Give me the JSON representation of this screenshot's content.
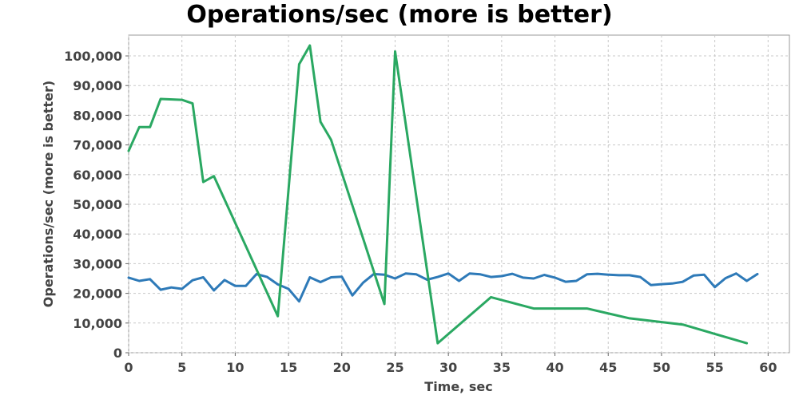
{
  "chart_data": {
    "type": "line",
    "title": "Operations/sec (more is better)",
    "xlabel": "Time, sec",
    "ylabel": "Operations/sec (more is better)",
    "xlim": [
      0,
      62
    ],
    "ylim": [
      0,
      107000
    ],
    "xticks": [
      0,
      5,
      10,
      15,
      20,
      25,
      30,
      35,
      40,
      45,
      50,
      55,
      60
    ],
    "yticks": [
      0,
      10000,
      20000,
      30000,
      40000,
      50000,
      60000,
      70000,
      80000,
      90000,
      100000
    ],
    "ytick_labels": [
      "0",
      "10,000",
      "20,000",
      "30,000",
      "40,000",
      "50,000",
      "60,000",
      "70,000",
      "80,000",
      "90,000",
      "100,000"
    ],
    "grid": true,
    "series": [
      {
        "color": "#2e7ab8",
        "x": [
          0,
          1,
          2,
          3,
          4,
          5,
          6,
          7,
          8,
          9,
          10,
          11,
          12,
          13,
          14,
          15,
          16,
          17,
          18,
          19,
          20,
          21,
          22,
          23,
          24,
          25,
          26,
          27,
          28,
          29,
          30,
          31,
          32,
          33,
          34,
          35,
          36,
          37,
          38,
          39,
          40,
          41,
          42,
          43,
          44,
          45,
          46,
          47,
          48,
          49,
          50,
          51,
          52,
          53,
          54,
          55,
          56,
          57,
          58,
          59
        ],
        "y": [
          25300,
          24200,
          24800,
          21200,
          22000,
          21500,
          24400,
          25400,
          21000,
          24500,
          22500,
          22500,
          26500,
          25500,
          23000,
          21500,
          17300,
          25400,
          23800,
          25400,
          25600,
          19300,
          23600,
          26500,
          26300,
          25000,
          26700,
          26400,
          24600,
          25500,
          26700,
          24200,
          26700,
          26400,
          25500,
          25800,
          26600,
          25300,
          25000,
          26200,
          25300,
          23900,
          24200,
          26400,
          26600,
          26300,
          26100,
          26100,
          25500,
          22800,
          23100,
          23300,
          23900,
          26000,
          26300,
          22100,
          25100,
          26700,
          24200,
          26500
        ]
      },
      {
        "color": "#2aa862",
        "x": [
          0,
          1,
          2,
          3,
          5,
          6,
          7,
          8,
          14,
          16,
          17,
          18,
          19,
          24,
          25,
          29,
          34,
          38,
          43,
          47,
          52,
          58
        ],
        "y": [
          68000,
          76000,
          76000,
          85500,
          85200,
          84000,
          57500,
          59500,
          12300,
          97200,
          103500,
          77800,
          71700,
          16400,
          101500,
          3200,
          18700,
          14900,
          14900,
          11600,
          9500,
          3200
        ]
      }
    ]
  }
}
